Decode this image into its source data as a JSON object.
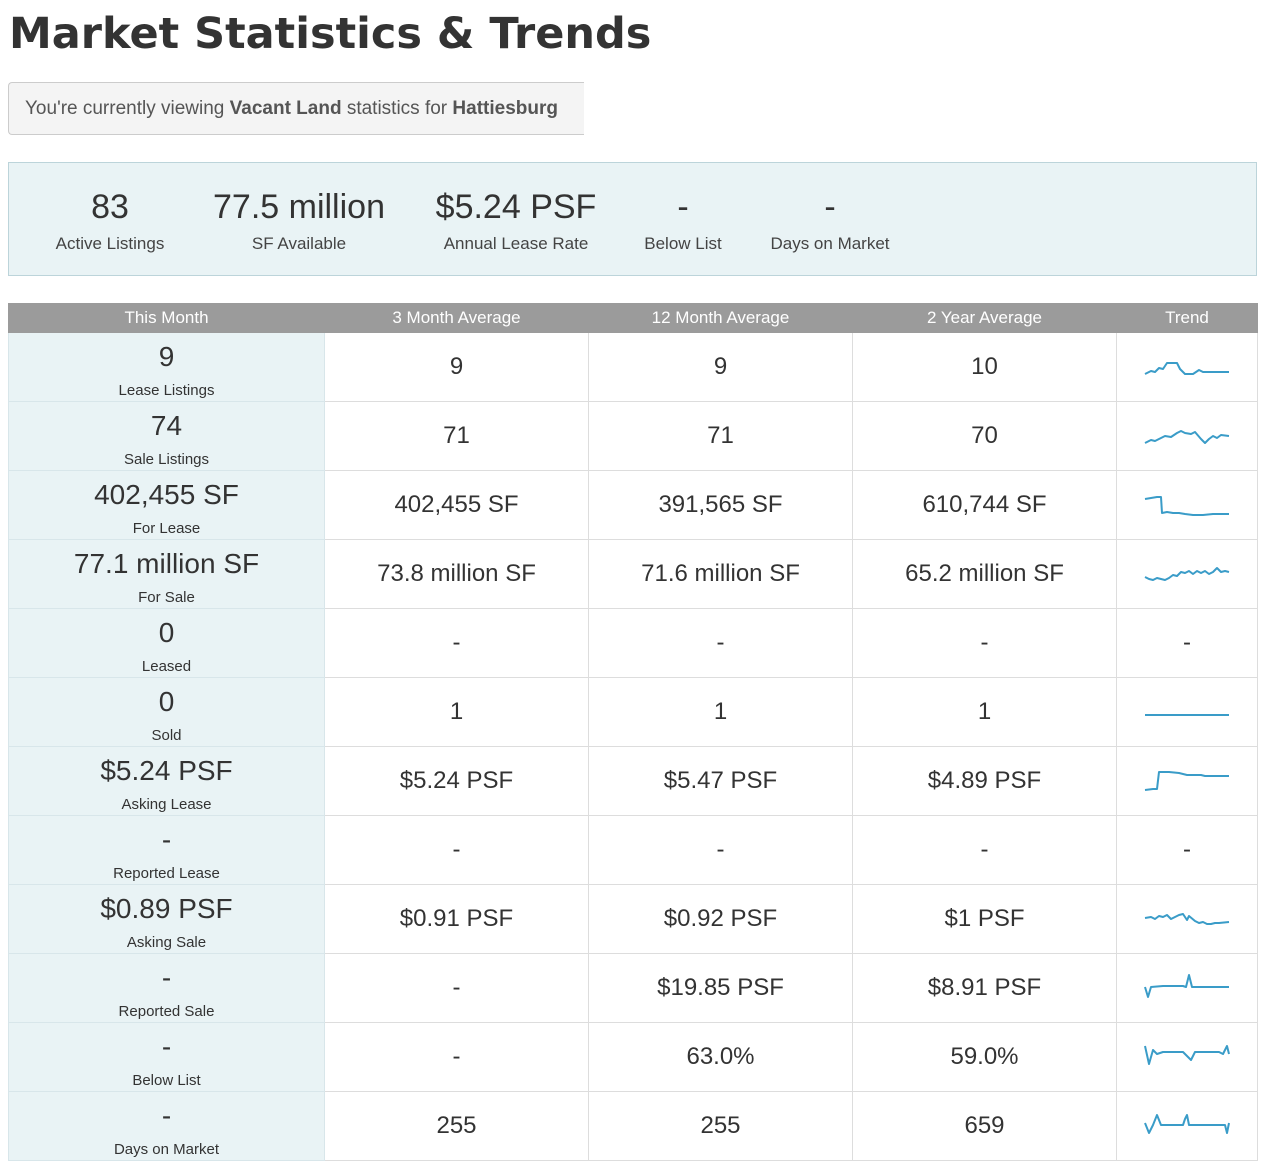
{
  "page": {
    "title": "Market Statistics & Trends",
    "notice": {
      "prefix": "You're currently viewing ",
      "type": "Vacant Land",
      "middle": " statistics for ",
      "location": "Hattiesburg"
    }
  },
  "summary": [
    {
      "value": "83",
      "label": "Active Listings"
    },
    {
      "value": "77.5 million",
      "label": "SF Available"
    },
    {
      "value": "$5.24 PSF",
      "label": "Annual Lease Rate"
    },
    {
      "value": "-",
      "label": "Below List"
    },
    {
      "value": "-",
      "label": "Days on Market"
    }
  ],
  "table": {
    "headers": [
      "This Month",
      "3 Month Average",
      "12 Month Average",
      "2 Year Average",
      "Trend"
    ],
    "trend_color": "#3a9cc8",
    "rows": [
      {
        "value": "9",
        "label": "Lease Listings",
        "avg3": "9",
        "avg12": "9",
        "avg24": "10",
        "trend": "lease-listings"
      },
      {
        "value": "74",
        "label": "Sale Listings",
        "avg3": "71",
        "avg12": "71",
        "avg24": "70",
        "trend": "sale-listings"
      },
      {
        "value": "402,455 SF",
        "label": "For Lease",
        "avg3": "402,455 SF",
        "avg12": "391,565 SF",
        "avg24": "610,744 SF",
        "trend": "for-lease"
      },
      {
        "value": "77.1 million SF",
        "label": "For Sale",
        "avg3": "73.8 million SF",
        "avg12": "71.6 million SF",
        "avg24": "65.2 million SF",
        "trend": "for-sale"
      },
      {
        "value": "0",
        "label": "Leased",
        "avg3": "-",
        "avg12": "-",
        "avg24": "-",
        "trend": "-"
      },
      {
        "value": "0",
        "label": "Sold",
        "avg3": "1",
        "avg12": "1",
        "avg24": "1",
        "trend": "sold"
      },
      {
        "value": "$5.24 PSF",
        "label": "Asking Lease",
        "avg3": "$5.24 PSF",
        "avg12": "$5.47 PSF",
        "avg24": "$4.89 PSF",
        "trend": "asking-lease"
      },
      {
        "value": "-",
        "label": "Reported Lease",
        "avg3": "-",
        "avg12": "-",
        "avg24": "-",
        "trend": "-"
      },
      {
        "value": "$0.89 PSF",
        "label": "Asking Sale",
        "avg3": "$0.91 PSF",
        "avg12": "$0.92 PSF",
        "avg24": "$1 PSF",
        "trend": "asking-sale"
      },
      {
        "value": "-",
        "label": "Reported Sale",
        "avg3": "-",
        "avg12": "$19.85 PSF",
        "avg24": "$8.91 PSF",
        "trend": "reported-sale"
      },
      {
        "value": "-",
        "label": "Below List",
        "avg3": "-",
        "avg12": "63.0%",
        "avg24": "59.0%",
        "trend": "below-list"
      },
      {
        "value": "-",
        "label": "Days on Market",
        "avg3": "255",
        "avg12": "255",
        "avg24": "659",
        "trend": "days-on-market"
      }
    ]
  }
}
